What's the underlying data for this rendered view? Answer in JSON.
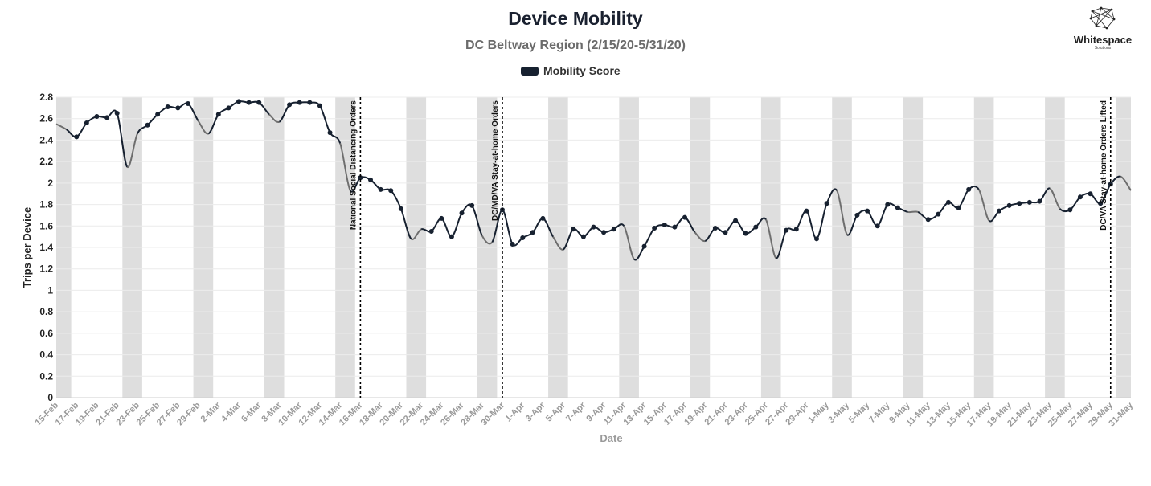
{
  "chart_data": {
    "type": "line",
    "title": "Device Mobility",
    "subtitle": "DC Beltway Region (2/15/20-5/31/20)",
    "xlabel": "Date",
    "ylabel": "Trips per Device",
    "ylim": [
      0,
      2.8
    ],
    "yticks": [
      "0",
      "0.2",
      "0.4",
      "0.6",
      "0.8",
      "1",
      "1.2",
      "1.4",
      "1.6",
      "1.8",
      "2",
      "2.2",
      "2.4",
      "2.6",
      "2.8"
    ],
    "grid": true,
    "legend": "top-center",
    "start_date": "2020-02-15",
    "x": [
      "15-Feb",
      "16-Feb",
      "17-Feb",
      "18-Feb",
      "19-Feb",
      "20-Feb",
      "21-Feb",
      "22-Feb",
      "23-Feb",
      "24-Feb",
      "25-Feb",
      "26-Feb",
      "27-Feb",
      "28-Feb",
      "29-Feb",
      "1-Mar",
      "2-Mar",
      "3-Mar",
      "4-Mar",
      "5-Mar",
      "6-Mar",
      "7-Mar",
      "8-Mar",
      "9-Mar",
      "10-Mar",
      "11-Mar",
      "12-Mar",
      "13-Mar",
      "14-Mar",
      "15-Mar",
      "16-Mar",
      "17-Mar",
      "18-Mar",
      "19-Mar",
      "20-Mar",
      "21-Mar",
      "22-Mar",
      "23-Mar",
      "24-Mar",
      "25-Mar",
      "26-Mar",
      "27-Mar",
      "28-Mar",
      "29-Mar",
      "30-Mar",
      "31-Mar",
      "1-Apr",
      "2-Apr",
      "3-Apr",
      "4-Apr",
      "5-Apr",
      "6-Apr",
      "7-Apr",
      "8-Apr",
      "9-Apr",
      "10-Apr",
      "11-Apr",
      "12-Apr",
      "13-Apr",
      "14-Apr",
      "15-Apr",
      "16-Apr",
      "17-Apr",
      "18-Apr",
      "19-Apr",
      "20-Apr",
      "21-Apr",
      "22-Apr",
      "23-Apr",
      "24-Apr",
      "25-Apr",
      "26-Apr",
      "27-Apr",
      "28-Apr",
      "29-Apr",
      "30-Apr",
      "1-May",
      "2-May",
      "3-May",
      "4-May",
      "5-May",
      "6-May",
      "7-May",
      "8-May",
      "9-May",
      "10-May",
      "11-May",
      "12-May",
      "13-May",
      "14-May",
      "15-May",
      "16-May",
      "17-May",
      "18-May",
      "19-May",
      "20-May",
      "21-May",
      "22-May",
      "23-May",
      "24-May",
      "25-May",
      "26-May",
      "27-May",
      "28-May",
      "29-May",
      "30-May",
      "31-May"
    ],
    "xtick_labels": [
      "15-Feb",
      "17-Feb",
      "19-Feb",
      "21-Feb",
      "23-Feb",
      "25-Feb",
      "27-Feb",
      "29-Feb",
      "2-Mar",
      "4-Mar",
      "6-Mar",
      "8-Mar",
      "10-Mar",
      "12-Mar",
      "14-Mar",
      "16-Mar",
      "18-Mar",
      "20-Mar",
      "22-Mar",
      "24-Mar",
      "26-Mar",
      "28-Mar",
      "30-Mar",
      "1-Apr",
      "3-Apr",
      "5-Apr",
      "7-Apr",
      "9-Apr",
      "11-Apr",
      "13-Apr",
      "15-Apr",
      "17-Apr",
      "19-Apr",
      "21-Apr",
      "23-Apr",
      "25-Apr",
      "27-Apr",
      "29-Apr",
      "1-May",
      "3-May",
      "5-May",
      "7-May",
      "9-May",
      "11-May",
      "13-May",
      "15-May",
      "17-May",
      "19-May",
      "21-May",
      "23-May",
      "25-May",
      "27-May",
      "29-May",
      "31-May"
    ],
    "series": [
      {
        "name": "Mobility Score",
        "color": "#172130",
        "weekend_color": "#6e6e6e",
        "values": [
          2.55,
          2.5,
          2.43,
          2.56,
          2.62,
          2.61,
          2.65,
          2.15,
          2.46,
          2.54,
          2.64,
          2.71,
          2.7,
          2.74,
          2.58,
          2.46,
          2.64,
          2.7,
          2.76,
          2.75,
          2.75,
          2.64,
          2.57,
          2.73,
          2.75,
          2.75,
          2.72,
          2.47,
          2.37,
          1.93,
          2.05,
          2.03,
          1.94,
          1.93,
          1.76,
          1.48,
          1.57,
          1.55,
          1.67,
          1.5,
          1.72,
          1.79,
          1.51,
          1.45,
          1.75,
          1.43,
          1.49,
          1.54,
          1.67,
          1.5,
          1.38,
          1.57,
          1.5,
          1.59,
          1.54,
          1.57,
          1.6,
          1.29,
          1.41,
          1.58,
          1.61,
          1.59,
          1.68,
          1.54,
          1.46,
          1.58,
          1.54,
          1.65,
          1.53,
          1.59,
          1.66,
          1.3,
          1.56,
          1.57,
          1.74,
          1.48,
          1.81,
          1.93,
          1.52,
          1.7,
          1.74,
          1.6,
          1.8,
          1.77,
          1.73,
          1.73,
          1.66,
          1.71,
          1.82,
          1.77,
          1.94,
          1.94,
          1.65,
          1.74,
          1.79,
          1.81,
          1.82,
          1.83,
          1.95,
          1.76,
          1.75,
          1.87,
          1.9,
          1.81,
          1.99,
          2.06,
          1.93
        ]
      }
    ],
    "weekend_bands": [
      [
        "15-Feb",
        "16-Feb"
      ],
      [
        "22-Feb",
        "23-Feb"
      ],
      [
        "29-Feb",
        "1-Mar"
      ],
      [
        "7-Mar",
        "8-Mar"
      ],
      [
        "14-Mar",
        "15-Mar"
      ],
      [
        "21-Mar",
        "22-Mar"
      ],
      [
        "28-Mar",
        "29-Mar"
      ],
      [
        "4-Apr",
        "5-Apr"
      ],
      [
        "11-Apr",
        "12-Apr"
      ],
      [
        "18-Apr",
        "19-Apr"
      ],
      [
        "25-Apr",
        "26-Apr"
      ],
      [
        "2-May",
        "3-May"
      ],
      [
        "9-May",
        "10-May"
      ],
      [
        "16-May",
        "17-May"
      ],
      [
        "23-May",
        "24-May"
      ],
      [
        "30-May",
        "31-May"
      ]
    ],
    "annotations": [
      {
        "date": "16-Mar",
        "text": "National Social Distancing Orders"
      },
      {
        "date": "30-Mar",
        "text": "DC/MD/VA Stay-at-home Orders"
      },
      {
        "date": "29-May",
        "text": "DC/VA Stay-at-home Orders Lifted"
      }
    ]
  },
  "logo": {
    "name": "Whitespace",
    "tagline": "Solutions"
  }
}
